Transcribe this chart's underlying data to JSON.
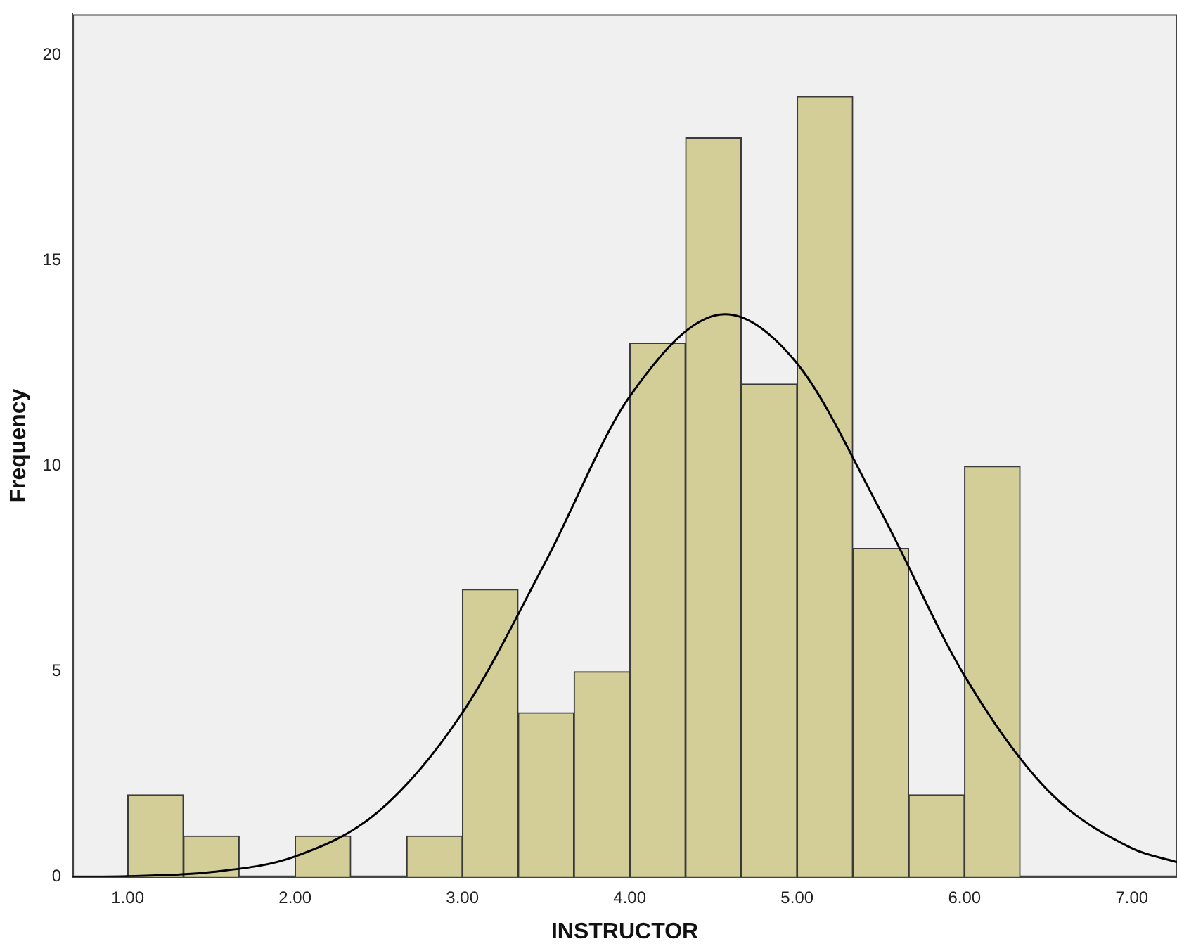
{
  "chart_data": {
    "type": "histogram",
    "xlabel": "INSTRUCTOR",
    "ylabel": "Frequency",
    "bins": [
      1,
      1.333,
      1.667,
      2,
      2.333,
      2.667,
      3,
      3.333,
      3.667,
      4,
      4.333,
      4.667,
      5,
      5.333,
      5.667,
      6,
      6.333
    ],
    "series": [
      {
        "color": "#d3ce98",
        "values": [
          2,
          1,
          0,
          1,
          0,
          1,
          7,
          4,
          5,
          13,
          18,
          12,
          19,
          8,
          2,
          10
        ]
      },
      {
        "type": "line",
        "color": "#000000",
        "x": [
          0.67,
          1,
          1.5,
          2,
          2.5,
          3,
          3.5,
          4,
          4.57,
          5,
          5.5,
          6,
          6.5,
          7,
          7.27
        ],
        "values": [
          0.0,
          0.02,
          0.12,
          0.5,
          1.6,
          4.0,
          7.7,
          11.7,
          13.7,
          12.5,
          8.9,
          4.9,
          2.1,
          0.7,
          0.36
        ]
      }
    ],
    "xlim": [
      0.67,
      7.27
    ],
    "xticks": [
      {
        "value": 1,
        "label": "1.00"
      },
      {
        "value": 2,
        "label": "2.00"
      },
      {
        "value": 3,
        "label": "3.00"
      },
      {
        "value": 4,
        "label": "4.00"
      },
      {
        "value": 5,
        "label": "5.00"
      },
      {
        "value": 6,
        "label": "6.00"
      },
      {
        "value": 7,
        "label": "7.00"
      }
    ],
    "ylim": [
      0,
      21
    ],
    "yticks": [
      0,
      5,
      10,
      15,
      20
    ],
    "grid": false,
    "legend": false,
    "marker": "none",
    "line_style": "solid"
  }
}
